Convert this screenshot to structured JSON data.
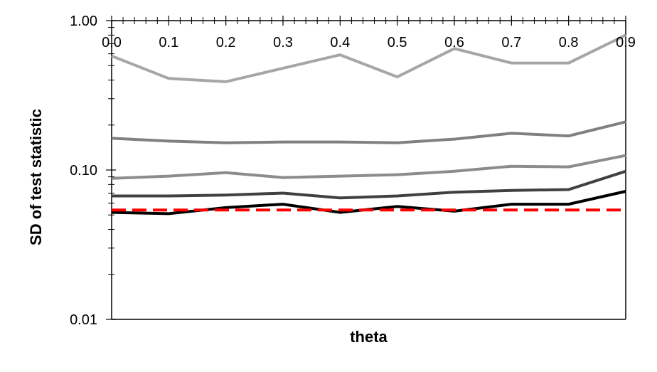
{
  "chart_data": {
    "type": "line",
    "xlabel": "theta",
    "ylabel": "SD of test statistic",
    "y_scale": "log",
    "ylim": [
      0.01,
      1.0
    ],
    "y_ticks": [
      0.01,
      0.1,
      1.0
    ],
    "y_tick_labels": [
      "0.01",
      "0.10",
      "1.00"
    ],
    "x_ticks": [
      0.0,
      0.1,
      0.2,
      0.3,
      0.4,
      0.5,
      0.6,
      0.7,
      0.8,
      0.9
    ],
    "x_tick_labels": [
      "0.0",
      "0.1",
      "0.2",
      "0.3",
      "0.4",
      "0.5",
      "0.6",
      "0.7",
      "0.8",
      "0.9"
    ],
    "xlim": [
      0.0,
      0.9
    ],
    "x_axis_position": "top",
    "grid": false,
    "legend": "none",
    "x": [
      0.0,
      0.1,
      0.2,
      0.3,
      0.4,
      0.5,
      0.6,
      0.7,
      0.8,
      0.9
    ],
    "series": [
      {
        "color": "#a6a6a6",
        "style": "solid",
        "values": [
          0.58,
          0.41,
          0.39,
          0.48,
          0.59,
          0.42,
          0.65,
          0.52,
          0.52,
          0.8
        ]
      },
      {
        "color": "#808080",
        "style": "solid",
        "values": [
          0.163,
          0.156,
          0.152,
          0.154,
          0.154,
          0.152,
          0.161,
          0.176,
          0.169,
          0.21
        ]
      },
      {
        "color": "#8c8c8c",
        "style": "solid",
        "values": [
          0.088,
          0.091,
          0.096,
          0.089,
          0.091,
          0.093,
          0.098,
          0.106,
          0.105,
          0.125
        ]
      },
      {
        "color": "#404040",
        "style": "solid",
        "values": [
          0.067,
          0.067,
          0.068,
          0.07,
          0.065,
          0.067,
          0.071,
          0.073,
          0.074,
          0.098
        ]
      },
      {
        "color": "#000000",
        "style": "solid",
        "values": [
          0.052,
          0.051,
          0.056,
          0.059,
          0.052,
          0.057,
          0.053,
          0.059,
          0.059,
          0.072
        ]
      },
      {
        "color": "#ff0000",
        "style": "dashed",
        "values": [
          0.054,
          0.054,
          0.054,
          0.054,
          0.054,
          0.054,
          0.054,
          0.054,
          0.054,
          0.054
        ]
      }
    ]
  }
}
